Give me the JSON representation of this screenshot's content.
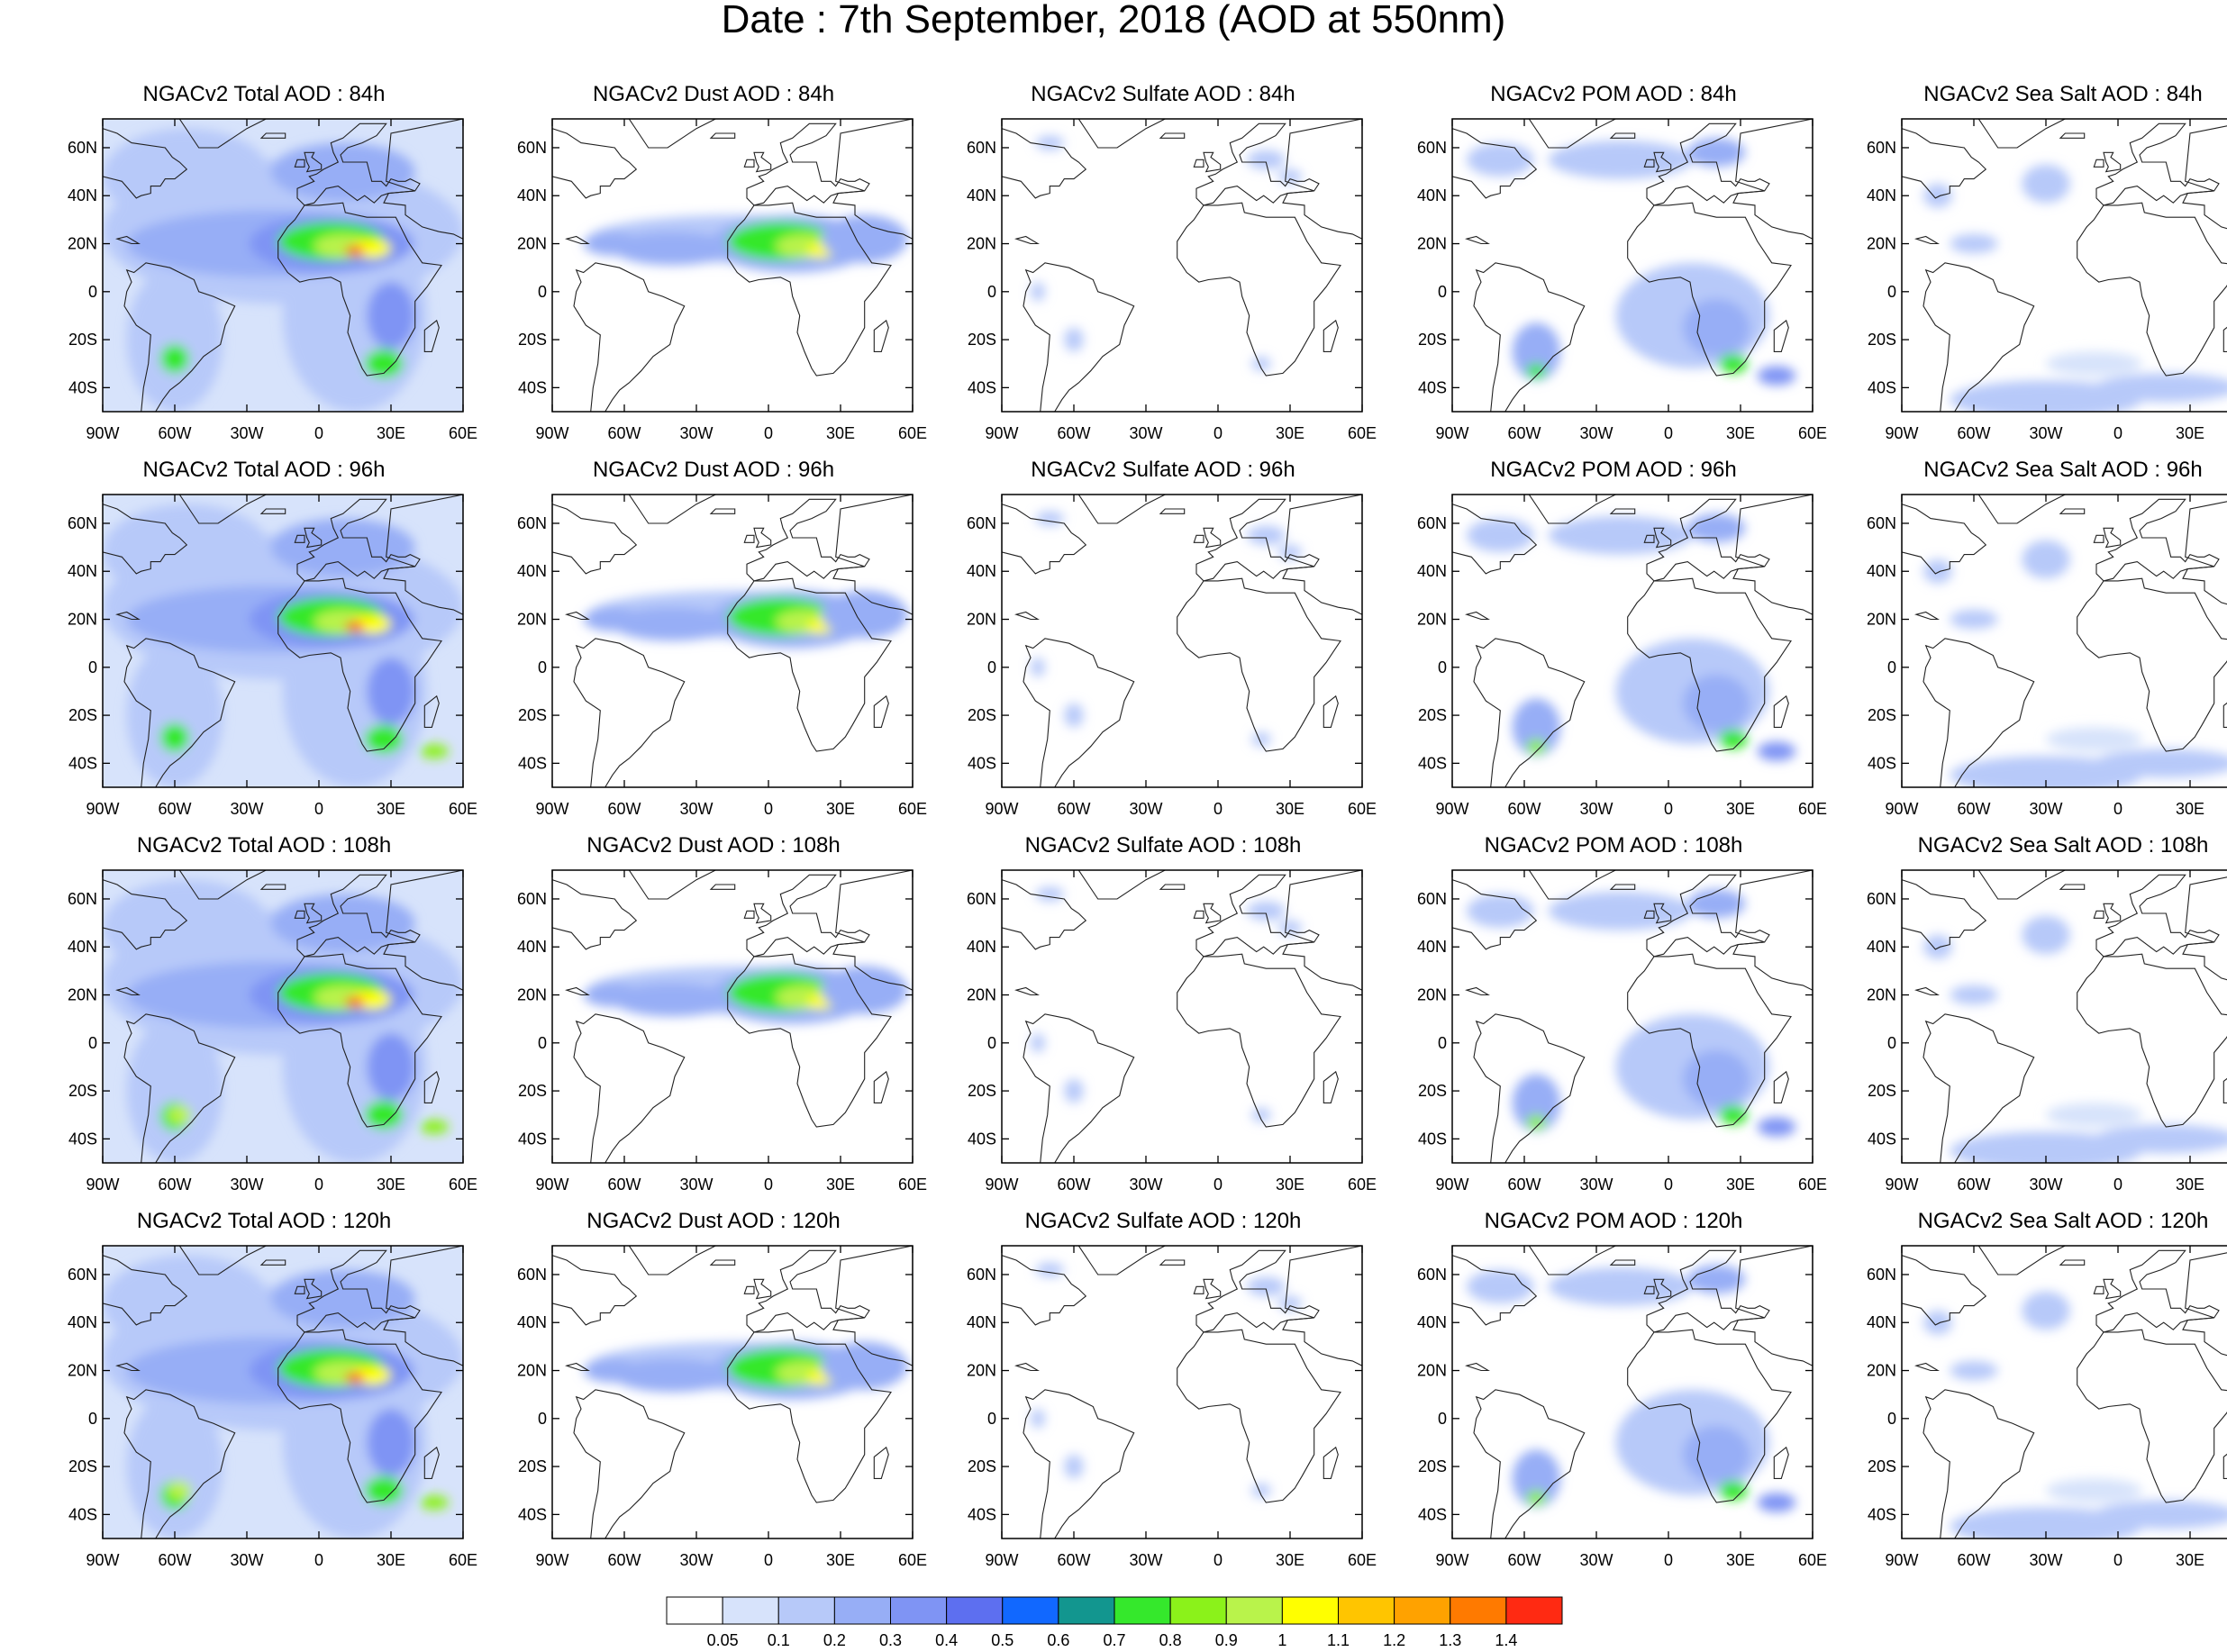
{
  "title": "Date : 7th September, 2018 (AOD at 550nm)",
  "map_axes": {
    "lon_labels": [
      "90W",
      "60W",
      "30W",
      "0",
      "30E",
      "60E"
    ],
    "lat_labels": [
      "60N",
      "40N",
      "20N",
      "0",
      "20S",
      "40S"
    ],
    "lon_range": [
      -90,
      60
    ],
    "lat_range": [
      -50,
      72
    ]
  },
  "panels": [
    {
      "title": "NGACv2 Total AOD : 84h",
      "species": "total",
      "hour": 84
    },
    {
      "title": "NGACv2 Dust AOD : 84h",
      "species": "dust",
      "hour": 84
    },
    {
      "title": "NGACv2 Sulfate AOD : 84h",
      "species": "sulfate",
      "hour": 84
    },
    {
      "title": "NGACv2 POM AOD : 84h",
      "species": "pom",
      "hour": 84
    },
    {
      "title": "NGACv2 Sea Salt AOD : 84h",
      "species": "seasalt",
      "hour": 84
    },
    {
      "title": "NGACv2 Total AOD : 96h",
      "species": "total",
      "hour": 96
    },
    {
      "title": "NGACv2 Dust AOD : 96h",
      "species": "dust",
      "hour": 96
    },
    {
      "title": "NGACv2 Sulfate AOD : 96h",
      "species": "sulfate",
      "hour": 96
    },
    {
      "title": "NGACv2 POM AOD : 96h",
      "species": "pom",
      "hour": 96
    },
    {
      "title": "NGACv2 Sea Salt AOD : 96h",
      "species": "seasalt",
      "hour": 96
    },
    {
      "title": "NGACv2 Total AOD : 108h",
      "species": "total",
      "hour": 108
    },
    {
      "title": "NGACv2 Dust AOD : 108h",
      "species": "dust",
      "hour": 108
    },
    {
      "title": "NGACv2 Sulfate AOD : 108h",
      "species": "sulfate",
      "hour": 108
    },
    {
      "title": "NGACv2 POM AOD : 108h",
      "species": "pom",
      "hour": 108
    },
    {
      "title": "NGACv2 Sea Salt AOD : 108h",
      "species": "seasalt",
      "hour": 108
    },
    {
      "title": "NGACv2 Total AOD : 120h",
      "species": "total",
      "hour": 120
    },
    {
      "title": "NGACv2 Dust AOD : 120h",
      "species": "dust",
      "hour": 120
    },
    {
      "title": "NGACv2 Sulfate AOD : 120h",
      "species": "sulfate",
      "hour": 120
    },
    {
      "title": "NGACv2 POM AOD : 120h",
      "species": "pom",
      "hour": 120
    },
    {
      "title": "NGACv2 Sea Salt  AOD : 120h",
      "species": "seasalt",
      "hour": 120
    }
  ],
  "colorbar": {
    "labels": [
      "0.05",
      "0.1",
      "0.2",
      "0.3",
      "0.4",
      "0.5",
      "0.6",
      "0.7",
      "0.8",
      "0.9",
      "1",
      "1.1",
      "1.2",
      "1.3",
      "1.4"
    ],
    "colors": [
      "#ffffff",
      "#d7e3fb",
      "#b7c9f9",
      "#97aef6",
      "#7f94f4",
      "#5d6ff0",
      "#1168ff",
      "#12968f",
      "#35e82c",
      "#8bf21a",
      "#b9f34b",
      "#ffff00",
      "#ffc500",
      "#ffa200",
      "#ff7a00",
      "#ff2a12"
    ]
  }
}
